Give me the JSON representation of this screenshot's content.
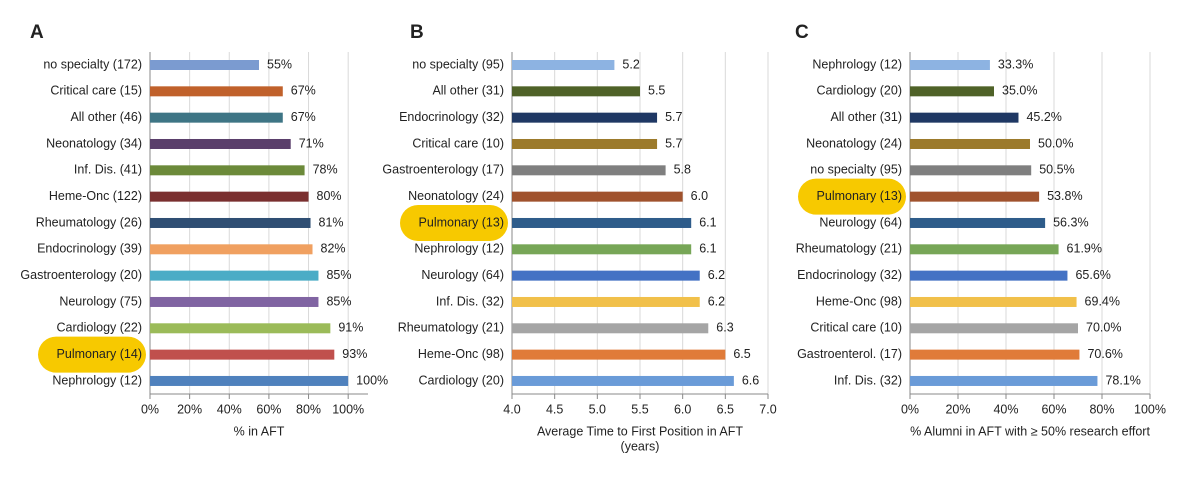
{
  "chart_data": [
    {
      "type": "bar",
      "panel": "A",
      "orientation": "horizontal",
      "categories": [
        "no specialty (172)",
        "Critical care (15)",
        "All other (46)",
        "Neonatology (34)",
        "Inf. Dis. (41)",
        "Heme-Onc (122)",
        "Rheumatology (26)",
        "Endocrinology (39)",
        "Gastroenterology (20)",
        "Neurology (75)",
        "Cardiology (22)",
        "Pulmonary (14)",
        "Nephrology (12)"
      ],
      "values": [
        55,
        67,
        67,
        71,
        78,
        80,
        81,
        82,
        85,
        85,
        91,
        93,
        100
      ],
      "value_labels": [
        "55%",
        "67%",
        "67%",
        "71%",
        "78%",
        "80%",
        "81%",
        "82%",
        "85%",
        "85%",
        "91%",
        "93%",
        "100%"
      ],
      "colors": [
        "#7b9bd0",
        "#c0612b",
        "#3e7585",
        "#5a3f6b",
        "#6c8a3a",
        "#7a2f2f",
        "#2f4e73",
        "#f0a060",
        "#4bacc6",
        "#8064a2",
        "#9bbb59",
        "#c0504d",
        "#4f81bd"
      ],
      "highlight": 11,
      "highlight_color": "#f7c900",
      "xlabel": [
        "% in AFT"
      ],
      "xlim": [
        0,
        110
      ],
      "xticks": [
        {
          "value": 0,
          "label": "0%"
        },
        {
          "value": 20,
          "label": "20%"
        },
        {
          "value": 40,
          "label": "40%"
        },
        {
          "value": 60,
          "label": "60%"
        },
        {
          "value": 80,
          "label": "80%"
        },
        {
          "value": 100,
          "label": "100%"
        }
      ],
      "grid": true
    },
    {
      "type": "bar",
      "panel": "B",
      "orientation": "horizontal",
      "categories": [
        "no specialty (95)",
        "All other (31)",
        "Endocrinology (32)",
        "Critical care (10)",
        "Gastroenterology (17)",
        "Neonatology (24)",
        "Pulmonary (13)",
        "Nephrology (12)",
        "Neurology (64)",
        "Inf. Dis. (32)",
        "Rheumatology (21)",
        "Heme-Onc (98)",
        "Cardiology (20)"
      ],
      "values": [
        5.2,
        5.5,
        5.7,
        5.7,
        5.8,
        6.0,
        6.1,
        6.1,
        6.2,
        6.2,
        6.3,
        6.5,
        6.6
      ],
      "value_labels": [
        "5.2",
        "5.5",
        "5.7",
        "5.7",
        "5.8",
        "6.0",
        "6.1",
        "6.1",
        "6.2",
        "6.2",
        "6.3",
        "6.5",
        "6.6"
      ],
      "colors": [
        "#8db3e2",
        "#4f6228",
        "#1f3864",
        "#9c7a2b",
        "#7f7f7f",
        "#a0522d",
        "#2e5c8a",
        "#77a657",
        "#4472c4",
        "#f1c04a",
        "#a5a5a5",
        "#e07b39",
        "#6a9bd8"
      ],
      "highlight": 6,
      "highlight_color": "#f7c900",
      "xlabel": [
        "Average Time to First Position in AFT",
        "(years)"
      ],
      "xlim": [
        4,
        7
      ],
      "xticks": [
        {
          "value": 4,
          "label": "4.0"
        },
        4.5,
        {
          "value": 5,
          "label": "5.0"
        },
        5.5,
        {
          "value": 6,
          "label": "6.0"
        },
        6.5,
        {
          "value": 7,
          "label": "7.0"
        }
      ],
      "grid": true
    },
    {
      "type": "bar",
      "panel": "C",
      "orientation": "horizontal",
      "categories": [
        "Nephrology (12)",
        "Cardiology (20)",
        "All other (31)",
        "Neonatology (24)",
        "no specialty (95)",
        "Pulmonary (13)",
        "Neurology (64)",
        "Rheumatology (21)",
        "Endocrinology (32)",
        "Heme-Onc (98)",
        "Critical care (10)",
        "Gastroenterol. (17)",
        "Inf. Dis. (32)"
      ],
      "values": [
        33.3,
        35.0,
        45.2,
        50.0,
        50.5,
        53.8,
        56.3,
        61.9,
        65.6,
        69.4,
        70.0,
        70.6,
        78.1
      ],
      "value_labels": [
        "33.3%",
        "35.0%",
        "45.2%",
        "50.0%",
        "50.5%",
        "53.8%",
        "56.3%",
        "61.9%",
        "65.6%",
        "69.4%",
        "70.0%",
        "70.6%",
        "78.1%"
      ],
      "colors": [
        "#8db3e2",
        "#4f6228",
        "#1f3864",
        "#9c7a2b",
        "#7f7f7f",
        "#a0522d",
        "#2e5c8a",
        "#77a657",
        "#4472c4",
        "#f1c04a",
        "#a5a5a5",
        "#e07b39",
        "#6a9bd8"
      ],
      "highlight": 5,
      "highlight_color": "#f7c900",
      "xlabel": [
        "% Alumni in AFT with ≥ 50% research effort"
      ],
      "xlim": [
        0,
        100
      ],
      "xticks": [
        {
          "value": 0,
          "label": "0%"
        },
        {
          "value": 20,
          "label": "20%"
        },
        {
          "value": 40,
          "label": "40%"
        },
        {
          "value": 60,
          "label": "60%"
        },
        {
          "value": 80,
          "label": "80%"
        },
        {
          "value": 100,
          "label": "100%"
        }
      ],
      "grid": true
    }
  ]
}
